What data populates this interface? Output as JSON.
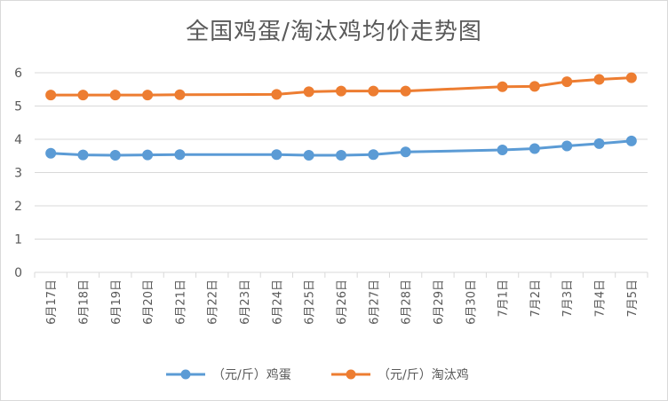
{
  "chart_data": {
    "type": "line",
    "title": "全国鸡蛋/淘汰鸡均价走势图",
    "xlabel": "",
    "ylabel": "",
    "ylim": [
      0,
      6
    ],
    "yticks": [
      "0",
      "1",
      "2",
      "3",
      "4",
      "5",
      "6"
    ],
    "grid": "horizontal",
    "legend_position": "bottom",
    "categories": [
      "6月17日",
      "6月18日",
      "6月19日",
      "6月20日",
      "6月21日",
      "6月22日",
      "6月23日",
      "6月24日",
      "6月25日",
      "6月26日",
      "6月27日",
      "6月28日",
      "6月29日",
      "6月30日",
      "7月1日",
      "7月2日",
      "7月3日",
      "7月4日",
      "7月5日"
    ],
    "series": [
      {
        "name": "（元/斤）鸡蛋",
        "color": "#5b9bd5",
        "values": [
          3.58,
          3.53,
          3.52,
          3.53,
          3.54,
          null,
          null,
          3.54,
          3.52,
          3.52,
          3.54,
          3.62,
          null,
          null,
          3.68,
          3.72,
          3.8,
          3.87,
          3.95
        ]
      },
      {
        "name": "（元/斤）淘汰鸡",
        "color": "#ed7d31",
        "values": [
          5.33,
          5.33,
          5.33,
          5.33,
          5.34,
          null,
          null,
          5.35,
          5.43,
          5.45,
          5.45,
          5.45,
          null,
          null,
          5.58,
          5.59,
          5.73,
          5.8,
          5.85
        ]
      }
    ]
  }
}
